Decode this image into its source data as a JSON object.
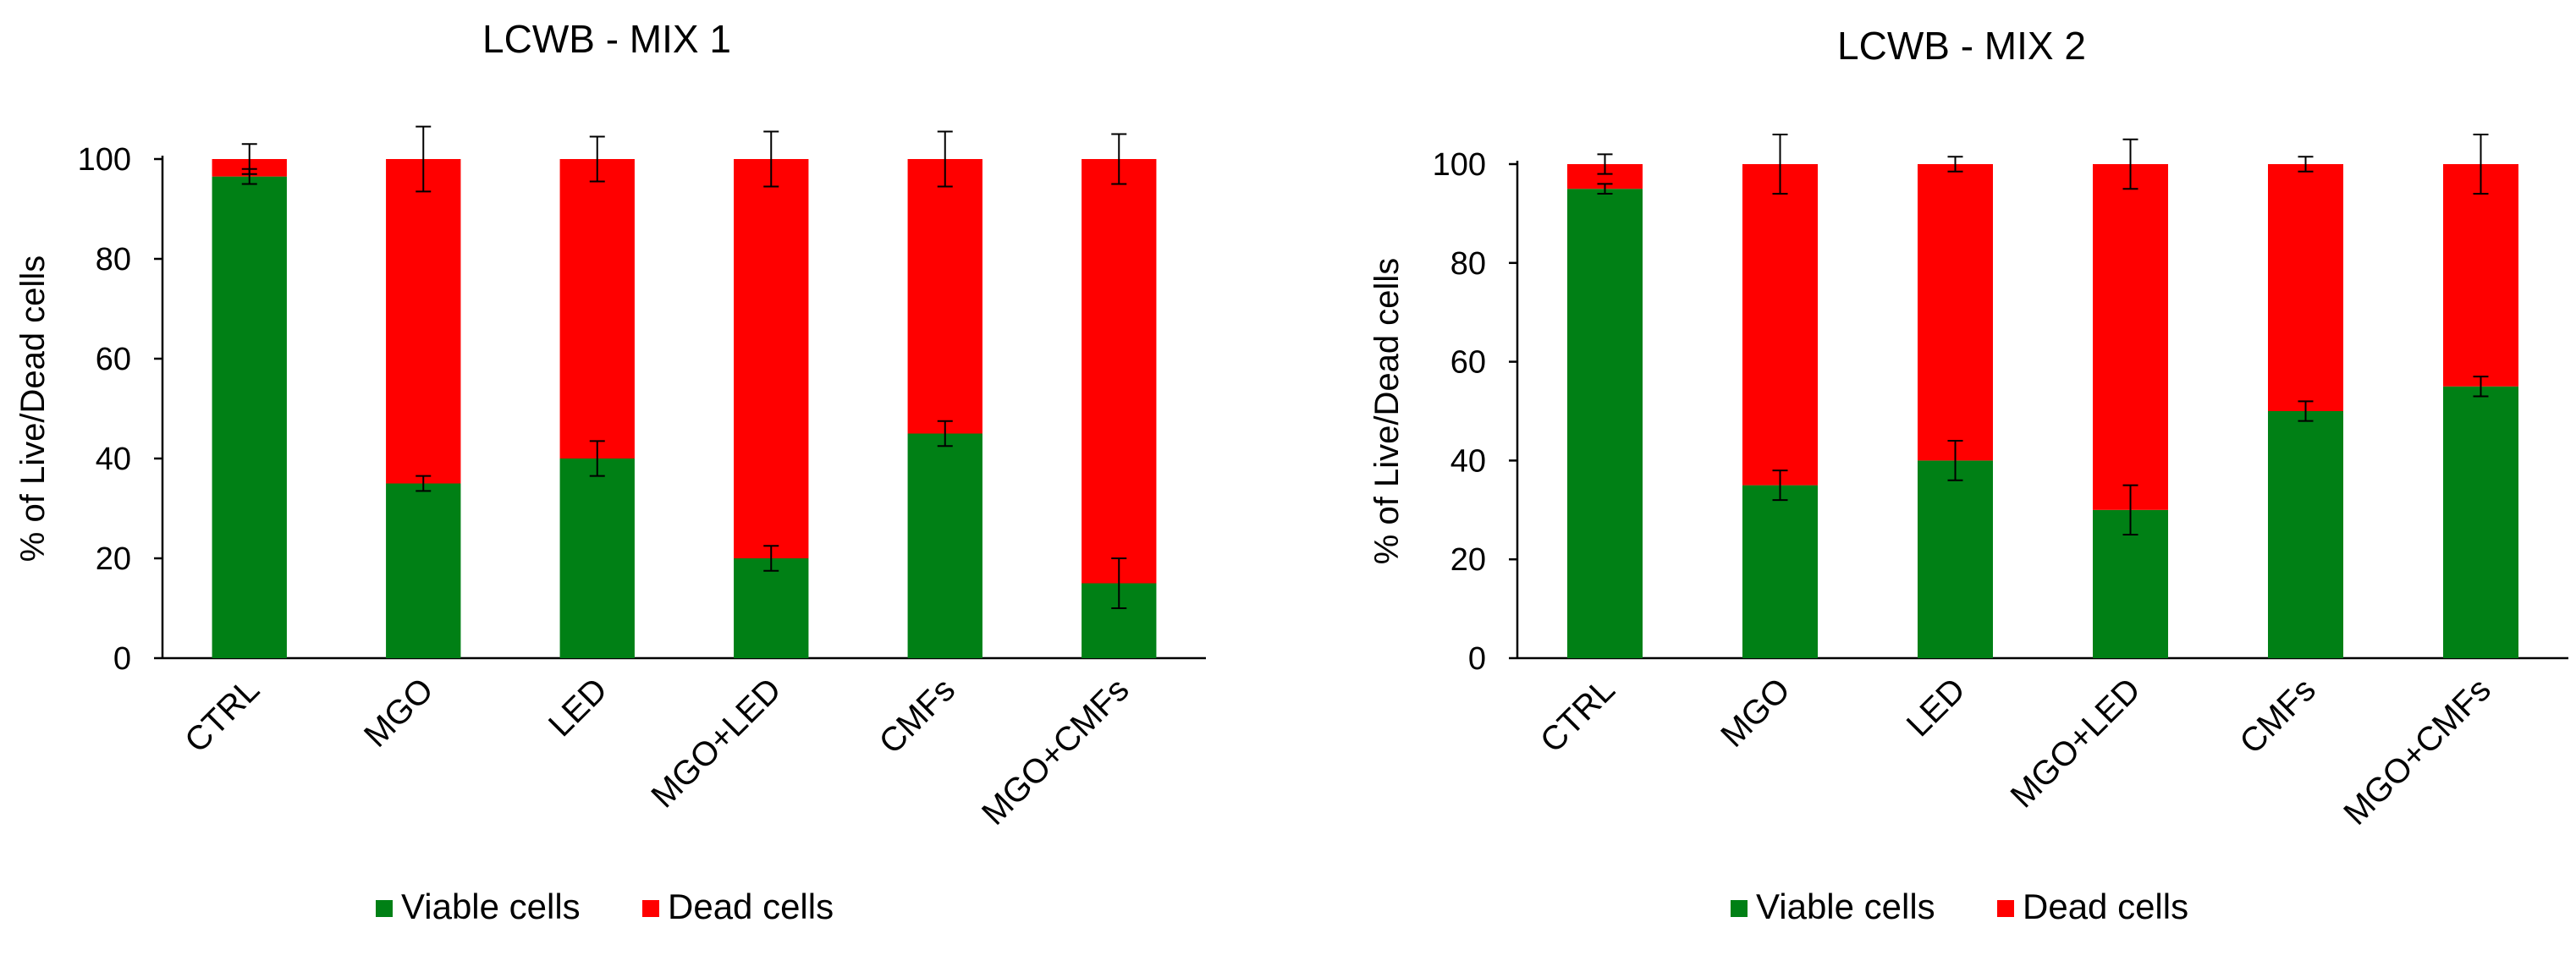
{
  "colors": {
    "viable": "#008015",
    "dead": "#ff0000",
    "axis": "#000000",
    "error_bar": "#000000"
  },
  "legend": {
    "viable_label": "Viable cells",
    "dead_label": "Dead cells"
  },
  "chart_data": [
    {
      "type": "bar",
      "stacked": true,
      "title": "LCWB - MIX 1",
      "ylabel": "% of Live/Dead cells",
      "xlabel": "",
      "ylim": [
        0,
        100
      ],
      "yticks": [
        0,
        20,
        40,
        60,
        80,
        100
      ],
      "categories": [
        "CTRL",
        "MGO",
        "LED",
        "MGO+LED",
        "CMFs",
        "MGO+CMFs"
      ],
      "series": [
        {
          "name": "Viable cells",
          "values": [
            96.5,
            35,
            40,
            20,
            45,
            15
          ],
          "errors": [
            1.5,
            1.5,
            3.5,
            2.5,
            2.5,
            5
          ]
        },
        {
          "name": "Dead cells",
          "values": [
            3.5,
            65,
            60,
            80,
            55,
            85
          ],
          "errors": [
            3,
            6.5,
            4.5,
            5.5,
            5.5,
            5
          ]
        }
      ],
      "legend_position": "bottom"
    },
    {
      "type": "bar",
      "stacked": true,
      "title": "LCWB - MIX 2",
      "ylabel": "% of Live/Dead cells",
      "xlabel": "",
      "ylim": [
        0,
        100
      ],
      "yticks": [
        0,
        20,
        40,
        60,
        80,
        100
      ],
      "categories": [
        "CTRL",
        "MGO",
        "LED",
        "MGO+LED",
        "CMFs",
        "MGO+CMFs"
      ],
      "series": [
        {
          "name": "Viable cells",
          "values": [
            95,
            35,
            40,
            30,
            50,
            55
          ],
          "errors": [
            1,
            3,
            4,
            5,
            2,
            2
          ]
        },
        {
          "name": "Dead cells",
          "values": [
            5,
            65,
            60,
            70,
            50,
            45
          ],
          "errors": [
            2,
            6,
            1.5,
            5,
            1.5,
            6
          ]
        }
      ],
      "legend_position": "bottom"
    }
  ]
}
